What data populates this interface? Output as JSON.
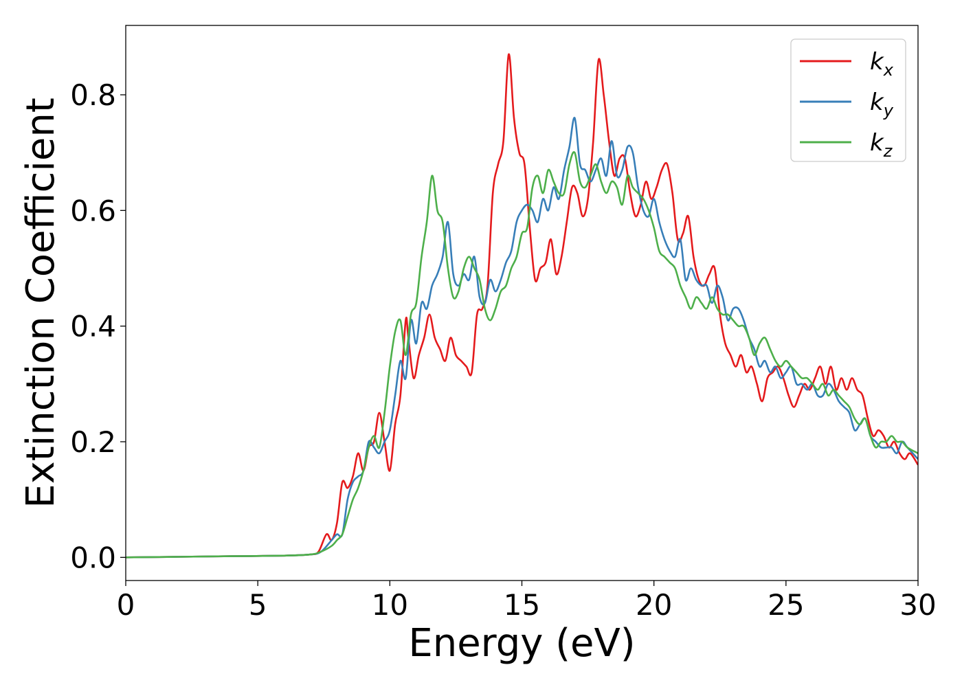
{
  "chart_data": {
    "type": "line",
    "title": "",
    "xlabel": "Energy (eV)",
    "ylabel": "Extinction Coefficient",
    "xlim": [
      0,
      30
    ],
    "ylim": [
      -0.04,
      0.92
    ],
    "xticks": [
      0,
      5,
      10,
      15,
      20,
      25,
      30
    ],
    "xtick_labels": [
      "0",
      "5",
      "10",
      "15",
      "20",
      "25",
      "30"
    ],
    "yticks": [
      0.0,
      0.2,
      0.4,
      0.6,
      0.8
    ],
    "ytick_labels": [
      "0.0",
      "0.2",
      "0.4",
      "0.6",
      "0.8"
    ],
    "grid": false,
    "legend_position": "top-right",
    "series": [
      {
        "name": "k_x",
        "label_base": "k",
        "label_sub": "x",
        "color": "#e41a1c",
        "x": [
          0,
          2,
          4,
          6,
          7,
          7.3,
          7.6,
          7.8,
          8.0,
          8.2,
          8.4,
          8.6,
          8.8,
          9.0,
          9.2,
          9.4,
          9.6,
          9.8,
          10.0,
          10.2,
          10.4,
          10.6,
          10.7,
          10.9,
          11.1,
          11.3,
          11.5,
          11.7,
          11.9,
          12.1,
          12.3,
          12.5,
          12.7,
          12.9,
          13.1,
          13.3,
          13.5,
          13.7,
          13.9,
          14.1,
          14.3,
          14.5,
          14.7,
          14.9,
          15.1,
          15.3,
          15.5,
          15.7,
          15.9,
          16.1,
          16.3,
          16.5,
          16.7,
          16.9,
          17.1,
          17.3,
          17.5,
          17.7,
          17.9,
          18.1,
          18.3,
          18.5,
          18.7,
          18.9,
          19.1,
          19.3,
          19.5,
          19.7,
          19.9,
          20.1,
          20.3,
          20.5,
          20.7,
          20.9,
          21.1,
          21.3,
          21.5,
          21.7,
          21.9,
          22.1,
          22.3,
          22.5,
          22.7,
          22.9,
          23.1,
          23.3,
          23.5,
          23.7,
          23.9,
          24.1,
          24.3,
          24.5,
          24.7,
          24.9,
          25.1,
          25.3,
          25.5,
          25.7,
          25.9,
          26.1,
          26.3,
          26.5,
          26.7,
          26.9,
          27.1,
          27.3,
          27.5,
          27.7,
          27.9,
          28.1,
          28.3,
          28.5,
          28.7,
          28.9,
          29.1,
          29.3,
          29.5,
          29.7,
          30.0
        ],
        "y": [
          0.0,
          0.001,
          0.002,
          0.003,
          0.005,
          0.01,
          0.04,
          0.03,
          0.06,
          0.13,
          0.12,
          0.14,
          0.18,
          0.15,
          0.19,
          0.2,
          0.25,
          0.2,
          0.15,
          0.23,
          0.28,
          0.41,
          0.38,
          0.31,
          0.35,
          0.38,
          0.42,
          0.38,
          0.36,
          0.34,
          0.38,
          0.35,
          0.34,
          0.33,
          0.32,
          0.42,
          0.43,
          0.47,
          0.63,
          0.68,
          0.72,
          0.87,
          0.76,
          0.7,
          0.68,
          0.57,
          0.48,
          0.5,
          0.51,
          0.55,
          0.49,
          0.52,
          0.58,
          0.64,
          0.63,
          0.59,
          0.62,
          0.72,
          0.86,
          0.8,
          0.72,
          0.66,
          0.69,
          0.69,
          0.63,
          0.59,
          0.61,
          0.65,
          0.62,
          0.64,
          0.67,
          0.68,
          0.63,
          0.55,
          0.56,
          0.59,
          0.52,
          0.48,
          0.47,
          0.49,
          0.5,
          0.42,
          0.37,
          0.35,
          0.33,
          0.35,
          0.32,
          0.33,
          0.3,
          0.27,
          0.31,
          0.32,
          0.33,
          0.31,
          0.28,
          0.26,
          0.28,
          0.3,
          0.29,
          0.31,
          0.33,
          0.3,
          0.33,
          0.29,
          0.31,
          0.29,
          0.31,
          0.29,
          0.28,
          0.24,
          0.21,
          0.22,
          0.21,
          0.19,
          0.2,
          0.18,
          0.17,
          0.18,
          0.16
        ]
      },
      {
        "name": "k_y",
        "label_base": "k",
        "label_sub": "y",
        "color": "#377eb8",
        "x": [
          0,
          2,
          4,
          6,
          7,
          7.4,
          7.8,
          8.0,
          8.2,
          8.4,
          8.6,
          8.8,
          9.0,
          9.2,
          9.4,
          9.6,
          9.8,
          10.0,
          10.2,
          10.4,
          10.6,
          10.8,
          11.0,
          11.2,
          11.4,
          11.6,
          11.8,
          12.0,
          12.2,
          12.4,
          12.6,
          12.8,
          13.0,
          13.2,
          13.4,
          13.6,
          13.8,
          14.0,
          14.2,
          14.4,
          14.6,
          14.8,
          15.0,
          15.2,
          15.4,
          15.6,
          15.8,
          16.0,
          16.2,
          16.4,
          16.6,
          16.8,
          17.0,
          17.2,
          17.4,
          17.6,
          17.8,
          18.0,
          18.2,
          18.4,
          18.6,
          18.8,
          19.0,
          19.2,
          19.4,
          19.6,
          19.8,
          20.0,
          20.2,
          20.4,
          20.6,
          20.8,
          21.0,
          21.2,
          21.4,
          21.6,
          21.8,
          22.0,
          22.2,
          22.4,
          22.6,
          22.8,
          23.0,
          23.2,
          23.4,
          23.6,
          23.8,
          24.0,
          24.2,
          24.4,
          24.6,
          24.8,
          25.0,
          25.2,
          25.4,
          25.6,
          25.8,
          26.0,
          26.2,
          26.4,
          26.6,
          26.8,
          27.0,
          27.2,
          27.4,
          27.6,
          27.8,
          28.0,
          28.2,
          28.4,
          28.6,
          28.8,
          29.0,
          29.2,
          29.4,
          29.6,
          30.0
        ],
        "y": [
          0.0,
          0.001,
          0.002,
          0.003,
          0.005,
          0.01,
          0.03,
          0.04,
          0.04,
          0.1,
          0.13,
          0.14,
          0.15,
          0.2,
          0.19,
          0.18,
          0.2,
          0.22,
          0.28,
          0.34,
          0.31,
          0.41,
          0.37,
          0.44,
          0.43,
          0.47,
          0.49,
          0.52,
          0.58,
          0.49,
          0.47,
          0.49,
          0.48,
          0.52,
          0.45,
          0.44,
          0.48,
          0.46,
          0.48,
          0.51,
          0.53,
          0.58,
          0.6,
          0.61,
          0.6,
          0.58,
          0.62,
          0.6,
          0.64,
          0.62,
          0.67,
          0.71,
          0.76,
          0.68,
          0.67,
          0.65,
          0.67,
          0.69,
          0.66,
          0.72,
          0.66,
          0.67,
          0.71,
          0.7,
          0.64,
          0.6,
          0.59,
          0.62,
          0.58,
          0.55,
          0.53,
          0.52,
          0.55,
          0.48,
          0.5,
          0.48,
          0.47,
          0.47,
          0.44,
          0.47,
          0.45,
          0.41,
          0.43,
          0.43,
          0.41,
          0.38,
          0.36,
          0.33,
          0.34,
          0.32,
          0.33,
          0.31,
          0.32,
          0.33,
          0.3,
          0.3,
          0.29,
          0.3,
          0.28,
          0.28,
          0.3,
          0.29,
          0.27,
          0.26,
          0.25,
          0.22,
          0.23,
          0.24,
          0.21,
          0.2,
          0.19,
          0.19,
          0.19,
          0.18,
          0.2,
          0.19,
          0.17
        ]
      },
      {
        "name": "k_z",
        "label_base": "k",
        "label_sub": "z",
        "color": "#4daf4a",
        "x": [
          0,
          2,
          4,
          6,
          7,
          7.4,
          7.8,
          8.0,
          8.2,
          8.4,
          8.6,
          8.8,
          9.0,
          9.2,
          9.4,
          9.6,
          9.8,
          10.0,
          10.2,
          10.4,
          10.6,
          10.8,
          11.0,
          11.2,
          11.4,
          11.6,
          11.8,
          12.0,
          12.2,
          12.4,
          12.6,
          12.8,
          13.0,
          13.2,
          13.4,
          13.6,
          13.8,
          14.0,
          14.2,
          14.4,
          14.6,
          14.8,
          15.0,
          15.2,
          15.4,
          15.6,
          15.8,
          16.0,
          16.2,
          16.4,
          16.6,
          16.8,
          17.0,
          17.2,
          17.4,
          17.6,
          17.8,
          18.0,
          18.2,
          18.4,
          18.6,
          18.8,
          19.0,
          19.2,
          19.4,
          19.6,
          19.8,
          20.0,
          20.2,
          20.4,
          20.6,
          20.8,
          21.0,
          21.2,
          21.4,
          21.6,
          21.8,
          22.0,
          22.2,
          22.4,
          22.6,
          22.8,
          23.0,
          23.2,
          23.4,
          23.6,
          23.8,
          24.0,
          24.2,
          24.4,
          24.6,
          24.8,
          25.0,
          25.2,
          25.4,
          25.6,
          25.8,
          26.0,
          26.2,
          26.4,
          26.6,
          26.8,
          27.0,
          27.2,
          27.4,
          27.6,
          27.8,
          28.0,
          28.2,
          28.4,
          28.6,
          28.8,
          29.0,
          29.2,
          29.4,
          29.6,
          30.0
        ],
        "y": [
          0.0,
          0.001,
          0.002,
          0.003,
          0.005,
          0.01,
          0.02,
          0.03,
          0.04,
          0.07,
          0.1,
          0.12,
          0.15,
          0.19,
          0.21,
          0.19,
          0.25,
          0.33,
          0.39,
          0.41,
          0.35,
          0.42,
          0.44,
          0.52,
          0.58,
          0.66,
          0.6,
          0.58,
          0.5,
          0.45,
          0.46,
          0.5,
          0.52,
          0.5,
          0.48,
          0.43,
          0.41,
          0.43,
          0.46,
          0.47,
          0.5,
          0.52,
          0.56,
          0.57,
          0.64,
          0.66,
          0.63,
          0.67,
          0.65,
          0.63,
          0.63,
          0.68,
          0.7,
          0.65,
          0.64,
          0.66,
          0.68,
          0.65,
          0.63,
          0.65,
          0.64,
          0.61,
          0.66,
          0.64,
          0.63,
          0.62,
          0.6,
          0.57,
          0.53,
          0.52,
          0.51,
          0.5,
          0.47,
          0.45,
          0.43,
          0.45,
          0.44,
          0.43,
          0.45,
          0.43,
          0.42,
          0.42,
          0.41,
          0.4,
          0.4,
          0.38,
          0.35,
          0.37,
          0.38,
          0.36,
          0.34,
          0.33,
          0.34,
          0.33,
          0.32,
          0.31,
          0.31,
          0.3,
          0.29,
          0.3,
          0.28,
          0.29,
          0.28,
          0.27,
          0.26,
          0.24,
          0.23,
          0.24,
          0.21,
          0.19,
          0.2,
          0.2,
          0.21,
          0.2,
          0.2,
          0.19,
          0.18
        ]
      }
    ]
  }
}
